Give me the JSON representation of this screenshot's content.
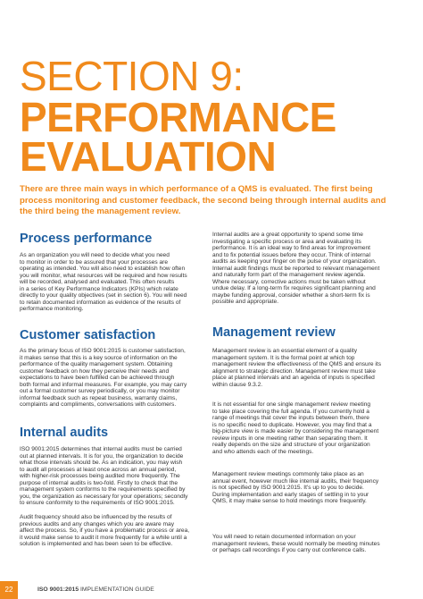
{
  "title": {
    "line1": "SECTION 9:",
    "line2": "PERFORMANCE",
    "line3": "EVALUATION"
  },
  "intro": [
    "There are three main ways in which performance of a QMS is evaluated. The first being",
    "process monitoring and customer feedback, the second being through internal audits and",
    "the third being the management review."
  ],
  "left": {
    "heading1": "Process performance",
    "para1": [
      "As an organization you will need to decide what you need",
      "to monitor in order to be assured that your processes are",
      "operating as intended. You will also need to establish how often",
      "you will monitor, what resources will be required and how results",
      "will be recorded, analysed and evaluated. This often results",
      "in a series of Key Performance Indicators (KPIs) which relate",
      "directly to your quality objectives (set in section 6). You will need",
      "to retain documented information as evidence of the results of",
      "performance monitoring."
    ],
    "heading2": "Customer satisfaction",
    "para2": [
      "As the primary focus of ISO 9001:2015 is customer satisfaction,",
      "it makes sense that this is a key source of information on the",
      "performance of the quality management system. Obtaining",
      "customer feedback on how they perceive their needs and",
      "expectations to have been fulfilled can be achieved through",
      "both formal and informal measures. For example, you may carry",
      "out a formal customer survey periodically, or you may monitor",
      "informal feedback such as repeat business, warranty claims,",
      "complaints and compliments, conversations with customers."
    ],
    "heading3": "Internal audits",
    "para3": [
      "ISO 9001:2015 determines that internal audits must be carried",
      "out at planned intervals. It is for you, the organization to decide",
      "what those intervals should be. As an indication, you may wish",
      "to audit all processes at least once across an annual period,",
      "with higher-risk processes being audited more frequently. The",
      "purpose of internal audits is two-fold. Firstly to check that the",
      "management system conforms to the requirements specified by",
      "you, the organization as necessary for your operations; secondly",
      "to ensure conformity to the requirements of ISO 9001:2015."
    ],
    "para4": [
      "Audit frequency should also be influenced by the results of",
      "previous audits and any changes which you are aware may",
      "affect the process. So, if you have a problematic process or area,",
      "it would make sense to audit it more frequently for a while until a",
      "solution is implemented and has been seen to be effective."
    ]
  },
  "right": {
    "para1": [
      "Internal audits are a great opportunity to spend some time",
      "investigating a specific process or area and evaluating its",
      "performance. It is an ideal way to find areas for improvement",
      "and to fix potential issues before they occur. Think of internal",
      "audits as keeping your finger on the pulse of your organization.",
      "Internal audit findings must be reported to relevant management",
      "and naturally form part of the management review agenda.",
      "Where necessary, corrective actions must be taken without",
      "undue delay. If a long-term fix requires significant planning and",
      "maybe funding approval, consider whether a short-term fix is",
      "possible and appropriate."
    ],
    "heading1": "Management review",
    "para2": [
      "Management review is an essential element of a quality",
      "management system. It is the formal point at which top",
      "management review the effectiveness of the QMS and ensure its",
      "alignment to strategic direction. Management review must take",
      "place at planned intervals and an agenda of inputs is specified",
      "within clause 9.3.2."
    ],
    "para3": [
      "It is not essential for one single management review meeting",
      "to take place covering the full agenda. If you currently hold a",
      "range of meetings that cover the inputs between them, there",
      "is no specific need to duplicate. However, you may find that a",
      "big-picture view is made easier by considering the management",
      "review inputs in one meeting rather than separating them. It",
      "really depends on the size and structure of your organization",
      "and who attends each of the meetings."
    ],
    "para4": [
      "Management review meetings commonly take place as an",
      "annual event, however much like internal audits, their frequency",
      "is not specified by ISO 9001:2015. It's up to you to decide.",
      "During implementation and early stages of settling in to your",
      "QMS, it may make sense to hold meetings more frequently."
    ],
    "para5": [
      "You will need to retain documented information on your",
      "management reviews, these would normally be meeting minutes",
      "or perhaps call recordings if you carry out conference calls."
    ]
  },
  "footer": {
    "page": "22",
    "guide_bold": "ISO 9001:2015",
    "guide": "IMPLEMENTATION GUIDE"
  }
}
